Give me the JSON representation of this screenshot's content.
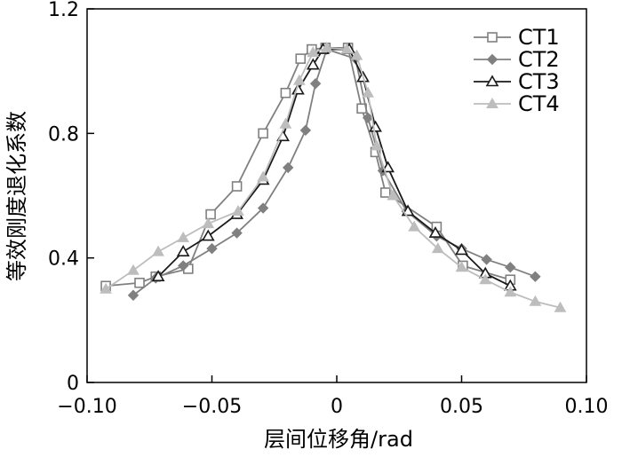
{
  "chart_data": {
    "type": "line",
    "title": "",
    "xlabel": "层间位移角/rad",
    "ylabel": "等效刚度退化系数",
    "xlim": [
      -0.1,
      0.1
    ],
    "ylim": [
      0,
      1.2
    ],
    "x_ticks": [
      -0.1,
      -0.05,
      0,
      0.05,
      0.1
    ],
    "x_tick_labels": [
      "−0.10",
      "−0.05",
      "0",
      "0.05",
      "0.10"
    ],
    "y_ticks": [
      0,
      0.4,
      0.8,
      1.2
    ],
    "y_tick_labels": [
      "0",
      "0.4",
      "0.8",
      "1.2"
    ],
    "grid": false,
    "legend_position": "top-right",
    "series": [
      {
        "name": "CT1",
        "marker": "square-open",
        "color": "#808080",
        "points": [
          [
            -0.0925,
            0.31
          ],
          [
            -0.079,
            0.32
          ],
          [
            -0.0725,
            0.34
          ],
          [
            -0.0595,
            0.365
          ],
          [
            -0.0505,
            0.54
          ],
          [
            -0.04,
            0.63
          ],
          [
            -0.0295,
            0.8
          ],
          [
            -0.0205,
            0.93
          ],
          [
            -0.0145,
            1.04
          ],
          [
            -0.01,
            1.07
          ],
          [
            -0.0045,
            1.075
          ],
          [
            0.0045,
            1.075
          ],
          [
            0.01,
            0.88
          ],
          [
            0.0155,
            0.74
          ],
          [
            0.0195,
            0.61
          ],
          [
            0.04,
            0.5
          ],
          [
            0.0505,
            0.375
          ],
          [
            0.0695,
            0.33
          ]
        ]
      },
      {
        "name": "CT2",
        "marker": "diamond-filled",
        "color": "#808080",
        "points": [
          [
            -0.0815,
            0.28
          ],
          [
            -0.0725,
            0.335
          ],
          [
            -0.0615,
            0.375
          ],
          [
            -0.05,
            0.43
          ],
          [
            -0.04,
            0.48
          ],
          [
            -0.0295,
            0.56
          ],
          [
            -0.0195,
            0.69
          ],
          [
            -0.0125,
            0.81
          ],
          [
            -0.0085,
            0.96
          ],
          [
            -0.004,
            1.07
          ],
          [
            0.0075,
            1.04
          ],
          [
            0.0125,
            0.85
          ],
          [
            0.0185,
            0.68
          ],
          [
            0.028,
            0.55
          ],
          [
            0.04,
            0.47
          ],
          [
            0.05,
            0.43
          ],
          [
            0.06,
            0.395
          ],
          [
            0.0695,
            0.37
          ],
          [
            0.0795,
            0.34
          ]
        ]
      },
      {
        "name": "CT3",
        "marker": "triangle-open",
        "color": "#1a1a1a",
        "points": [
          [
            -0.0715,
            0.34
          ],
          [
            -0.0615,
            0.42
          ],
          [
            -0.0515,
            0.47
          ],
          [
            -0.04,
            0.54
          ],
          [
            -0.0295,
            0.65
          ],
          [
            -0.0215,
            0.79
          ],
          [
            -0.0155,
            0.94
          ],
          [
            -0.0095,
            1.02
          ],
          [
            -0.0055,
            1.07
          ],
          [
            0.005,
            1.07
          ],
          [
            0.0105,
            0.98
          ],
          [
            0.0155,
            0.82
          ],
          [
            0.0205,
            0.69
          ],
          [
            0.0285,
            0.55
          ],
          [
            0.0395,
            0.48
          ],
          [
            0.05,
            0.425
          ],
          [
            0.0595,
            0.35
          ],
          [
            0.0695,
            0.31
          ]
        ]
      },
      {
        "name": "CT4",
        "marker": "triangle-filled",
        "color": "#bdbdbd",
        "points": [
          [
            -0.0925,
            0.3
          ],
          [
            -0.0815,
            0.36
          ],
          [
            -0.0715,
            0.42
          ],
          [
            -0.0615,
            0.465
          ],
          [
            -0.0515,
            0.51
          ],
          [
            -0.0395,
            0.55
          ],
          [
            -0.0295,
            0.66
          ],
          [
            -0.0205,
            0.83
          ],
          [
            -0.015,
            0.97
          ],
          [
            -0.0095,
            1.06
          ],
          [
            -0.004,
            1.075
          ],
          [
            0.004,
            1.07
          ],
          [
            0.008,
            1.05
          ],
          [
            0.0125,
            0.93
          ],
          [
            0.016,
            0.76
          ],
          [
            0.0225,
            0.6
          ],
          [
            0.031,
            0.5
          ],
          [
            0.0405,
            0.43
          ],
          [
            0.05,
            0.37
          ],
          [
            0.0595,
            0.33
          ],
          [
            0.0695,
            0.29
          ],
          [
            0.0795,
            0.26
          ],
          [
            0.0895,
            0.24
          ]
        ]
      }
    ]
  }
}
